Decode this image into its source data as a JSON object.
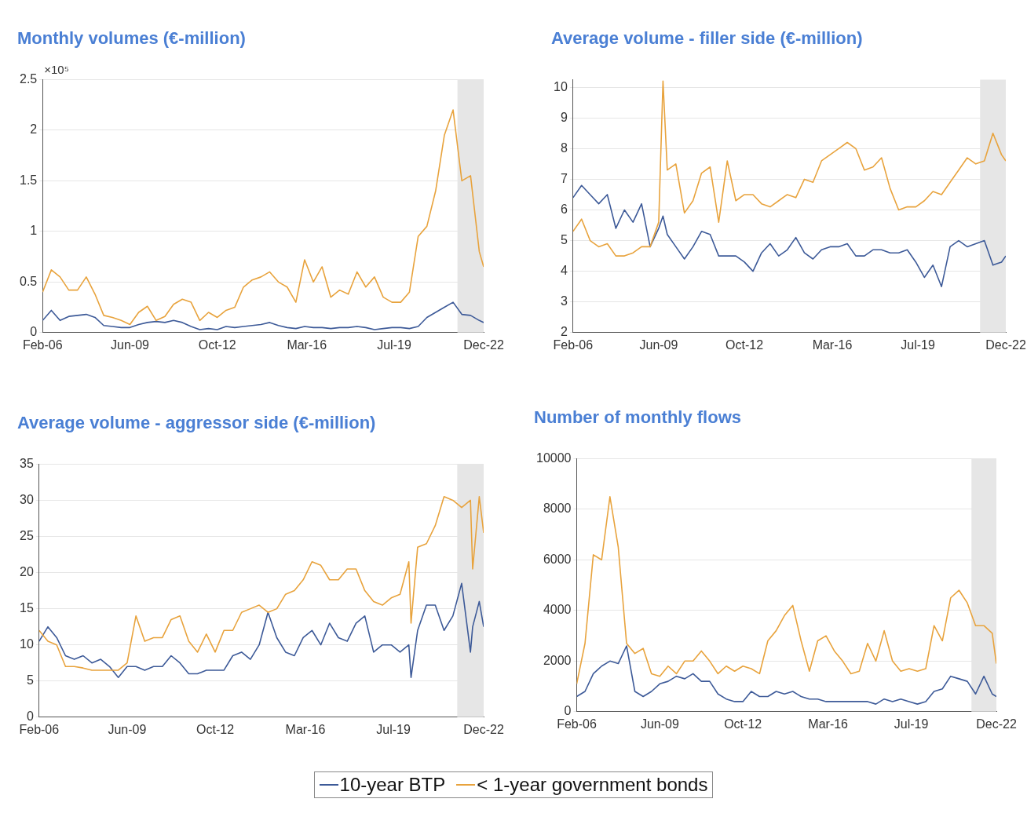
{
  "chart_data": [
    {
      "type": "line",
      "title": "Monthly volumes (€-million)",
      "annotations": [
        "×10⁵"
      ],
      "grid": "y",
      "x": [
        "2006-02",
        "2006-06",
        "2006-10",
        "2007-02",
        "2007-06",
        "2007-10",
        "2008-02",
        "2008-06",
        "2008-10",
        "2009-02",
        "2009-06",
        "2009-10",
        "2010-02",
        "2010-06",
        "2010-10",
        "2011-02",
        "2011-06",
        "2011-10",
        "2012-02",
        "2012-06",
        "2012-10",
        "2013-02",
        "2013-06",
        "2013-10",
        "2014-02",
        "2014-06",
        "2014-10",
        "2015-02",
        "2015-06",
        "2015-10",
        "2016-02",
        "2016-06",
        "2016-10",
        "2017-02",
        "2017-06",
        "2017-10",
        "2018-02",
        "2018-06",
        "2018-10",
        "2019-02",
        "2019-06",
        "2019-10",
        "2020-02",
        "2020-06",
        "2020-10",
        "2021-02",
        "2021-06",
        "2021-10",
        "2022-02",
        "2022-06",
        "2022-10",
        "2022-12"
      ],
      "xlim": [
        "2006-02",
        "2022-12"
      ],
      "xticks": [
        {
          "value": "2006-02",
          "label": "Feb-06"
        },
        {
          "value": "2009-06",
          "label": "Jun-09"
        },
        {
          "value": "2012-10",
          "label": "Oct-12"
        },
        {
          "value": "2016-03",
          "label": "Mar-16"
        },
        {
          "value": "2019-07",
          "label": "Jul-19"
        },
        {
          "value": "2022-12",
          "label": "Dec-22"
        }
      ],
      "ylim": [
        0,
        2.5
      ],
      "yticks": [
        0,
        0.5,
        1,
        1.5,
        2,
        2.5
      ],
      "bands": [
        {
          "axis": "x",
          "from": "2021-12",
          "to": "2022-12",
          "color": "#e6e6e6"
        }
      ],
      "series": [
        {
          "color": "#e8a33d",
          "values": [
            0.4,
            0.62,
            0.55,
            0.42,
            0.42,
            0.55,
            0.38,
            0.17,
            0.15,
            0.12,
            0.08,
            0.2,
            0.26,
            0.12,
            0.16,
            0.28,
            0.33,
            0.3,
            0.12,
            0.2,
            0.15,
            0.22,
            0.25,
            0.45,
            0.52,
            0.55,
            0.6,
            0.5,
            0.45,
            0.3,
            0.72,
            0.5,
            0.65,
            0.35,
            0.42,
            0.38,
            0.6,
            0.45,
            0.55,
            0.35,
            0.3,
            0.3,
            0.4,
            0.95,
            1.05,
            1.4,
            1.95,
            2.2,
            1.5,
            1.55,
            0.8,
            0.65
          ]
        },
        {
          "color": "#3d5a98",
          "values": [
            0.12,
            0.22,
            0.12,
            0.16,
            0.17,
            0.18,
            0.15,
            0.07,
            0.06,
            0.05,
            0.05,
            0.08,
            0.1,
            0.11,
            0.1,
            0.12,
            0.1,
            0.06,
            0.03,
            0.04,
            0.03,
            0.06,
            0.05,
            0.06,
            0.07,
            0.08,
            0.1,
            0.07,
            0.05,
            0.04,
            0.06,
            0.05,
            0.05,
            0.04,
            0.05,
            0.05,
            0.06,
            0.05,
            0.03,
            0.04,
            0.05,
            0.05,
            0.04,
            0.06,
            0.15,
            0.2,
            0.25,
            0.3,
            0.18,
            0.17,
            0.12,
            0.1
          ]
        }
      ]
    },
    {
      "type": "line",
      "title": "Average volume - filler side (€-million)",
      "grid": "y",
      "x": [
        "2006-02",
        "2006-06",
        "2006-10",
        "2007-02",
        "2007-06",
        "2007-10",
        "2008-02",
        "2008-06",
        "2008-10",
        "2009-02",
        "2009-06",
        "2009-08",
        "2009-10",
        "2010-02",
        "2010-06",
        "2010-10",
        "2011-02",
        "2011-06",
        "2011-10",
        "2012-02",
        "2012-06",
        "2012-10",
        "2013-02",
        "2013-06",
        "2013-10",
        "2014-02",
        "2014-06",
        "2014-10",
        "2015-02",
        "2015-06",
        "2015-10",
        "2016-02",
        "2016-06",
        "2016-10",
        "2017-02",
        "2017-06",
        "2017-10",
        "2018-02",
        "2018-06",
        "2018-10",
        "2019-02",
        "2019-06",
        "2019-10",
        "2020-02",
        "2020-06",
        "2020-10",
        "2021-02",
        "2021-06",
        "2021-10",
        "2022-02",
        "2022-06",
        "2022-10",
        "2022-12"
      ],
      "xlim": [
        "2006-02",
        "2022-12"
      ],
      "xticks": [
        {
          "value": "2006-02",
          "label": "Feb-06"
        },
        {
          "value": "2009-06",
          "label": "Jun-09"
        },
        {
          "value": "2012-10",
          "label": "Oct-12"
        },
        {
          "value": "2016-03",
          "label": "Mar-16"
        },
        {
          "value": "2019-07",
          "label": "Jul-19"
        },
        {
          "value": "2022-12",
          "label": "Dec-22"
        }
      ],
      "ylim": [
        2,
        10.25
      ],
      "yticks": [
        2,
        3,
        4,
        5,
        6,
        7,
        8,
        9,
        10
      ],
      "bands": [
        {
          "axis": "x",
          "from": "2021-12",
          "to": "2022-12",
          "color": "#e6e6e6"
        }
      ],
      "series": [
        {
          "color": "#e8a33d",
          "values": [
            5.3,
            5.7,
            5.0,
            4.8,
            4.9,
            4.5,
            4.5,
            4.6,
            4.8,
            4.8,
            5.6,
            10.2,
            7.3,
            7.5,
            5.9,
            6.3,
            7.2,
            7.4,
            5.6,
            7.6,
            6.3,
            6.5,
            6.5,
            6.2,
            6.1,
            6.3,
            6.5,
            6.4,
            7.0,
            6.9,
            7.6,
            7.8,
            8.0,
            8.2,
            8.0,
            7.3,
            7.4,
            7.7,
            6.7,
            6.0,
            6.1,
            6.1,
            6.3,
            6.6,
            6.5,
            6.9,
            7.3,
            7.7,
            7.5,
            7.6,
            8.5,
            7.8,
            7.6
          ]
        },
        {
          "color": "#3d5a98",
          "values": [
            6.4,
            6.8,
            6.5,
            6.2,
            6.5,
            5.4,
            6.0,
            5.6,
            6.2,
            4.8,
            5.4,
            5.8,
            5.2,
            4.8,
            4.4,
            4.8,
            5.3,
            5.2,
            4.5,
            4.5,
            4.5,
            4.3,
            4.0,
            4.6,
            4.9,
            4.5,
            4.7,
            5.1,
            4.6,
            4.4,
            4.7,
            4.8,
            4.8,
            4.9,
            4.5,
            4.5,
            4.7,
            4.7,
            4.6,
            4.6,
            4.7,
            4.3,
            3.8,
            4.2,
            3.5,
            4.8,
            5.0,
            4.8,
            4.9,
            5.0,
            4.2,
            4.3,
            4.5
          ]
        }
      ]
    },
    {
      "type": "line",
      "title": "Average volume - aggressor side (€-million)",
      "grid": "y",
      "x": [
        "2006-02",
        "2006-06",
        "2006-10",
        "2007-02",
        "2007-06",
        "2007-10",
        "2008-02",
        "2008-06",
        "2008-10",
        "2009-02",
        "2009-06",
        "2009-10",
        "2010-02",
        "2010-06",
        "2010-10",
        "2011-02",
        "2011-06",
        "2011-10",
        "2012-02",
        "2012-06",
        "2012-10",
        "2013-02",
        "2013-06",
        "2013-10",
        "2014-02",
        "2014-06",
        "2014-10",
        "2015-02",
        "2015-06",
        "2015-10",
        "2016-02",
        "2016-06",
        "2016-10",
        "2017-02",
        "2017-06",
        "2017-10",
        "2018-02",
        "2018-06",
        "2018-10",
        "2019-02",
        "2019-06",
        "2019-10",
        "2020-02",
        "2020-03",
        "2020-06",
        "2020-10",
        "2021-02",
        "2021-06",
        "2021-10",
        "2022-02",
        "2022-06",
        "2022-07",
        "2022-10",
        "2022-12"
      ],
      "xlim": [
        "2006-02",
        "2022-12"
      ],
      "xticks": [
        {
          "value": "2006-02",
          "label": "Feb-06"
        },
        {
          "value": "2009-06",
          "label": "Jun-09"
        },
        {
          "value": "2012-10",
          "label": "Oct-12"
        },
        {
          "value": "2016-03",
          "label": "Mar-16"
        },
        {
          "value": "2019-07",
          "label": "Jul-19"
        },
        {
          "value": "2022-12",
          "label": "Dec-22"
        }
      ],
      "ylim": [
        0,
        35
      ],
      "yticks": [
        0,
        5,
        10,
        15,
        20,
        25,
        30,
        35
      ],
      "bands": [
        {
          "axis": "x",
          "from": "2021-12",
          "to": "2022-12",
          "color": "#e6e6e6"
        }
      ],
      "series": [
        {
          "color": "#e8a33d",
          "values": [
            12.0,
            10.5,
            10.0,
            7.0,
            7.0,
            6.8,
            6.5,
            6.5,
            6.5,
            6.5,
            7.5,
            14.0,
            10.5,
            11.0,
            11.0,
            13.5,
            14.0,
            10.5,
            9.0,
            11.5,
            9.0,
            12.0,
            12.0,
            14.5,
            15.0,
            15.5,
            14.5,
            15.0,
            17.0,
            17.5,
            19.0,
            21.5,
            21.0,
            19.0,
            19.0,
            20.5,
            20.5,
            17.5,
            16.0,
            15.5,
            16.5,
            17.0,
            21.5,
            13.0,
            23.5,
            24.0,
            26.5,
            30.5,
            30.0,
            29.0,
            30.0,
            20.5,
            30.5,
            25.5
          ]
        },
        {
          "color": "#3d5a98",
          "values": [
            10.5,
            12.5,
            11.0,
            8.5,
            8.0,
            8.5,
            7.5,
            8.0,
            7.0,
            5.5,
            7.0,
            7.0,
            6.5,
            7.0,
            7.0,
            8.5,
            7.5,
            6.0,
            6.0,
            6.5,
            6.5,
            6.5,
            8.5,
            9.0,
            8.0,
            10.0,
            14.5,
            11.0,
            9.0,
            8.5,
            11.0,
            12.0,
            10.0,
            13.0,
            11.0,
            10.5,
            13.0,
            14.0,
            9.0,
            10.0,
            10.0,
            9.0,
            10.0,
            5.5,
            12.0,
            15.5,
            15.5,
            12.0,
            14.0,
            18.5,
            9.0,
            12.5,
            16.0,
            12.5
          ]
        }
      ]
    },
    {
      "type": "line",
      "title": "Number of monthly flows",
      "grid": "y",
      "legend": "bottom",
      "x": [
        "2006-02",
        "2006-06",
        "2006-10",
        "2007-02",
        "2007-06",
        "2007-10",
        "2008-02",
        "2008-06",
        "2008-10",
        "2009-02",
        "2009-06",
        "2009-10",
        "2010-02",
        "2010-06",
        "2010-10",
        "2011-02",
        "2011-06",
        "2011-10",
        "2012-02",
        "2012-06",
        "2012-10",
        "2013-02",
        "2013-06",
        "2013-10",
        "2014-02",
        "2014-06",
        "2014-10",
        "2015-02",
        "2015-06",
        "2015-10",
        "2016-02",
        "2016-06",
        "2016-10",
        "2017-02",
        "2017-06",
        "2017-10",
        "2018-02",
        "2018-06",
        "2018-10",
        "2019-02",
        "2019-06",
        "2019-10",
        "2020-02",
        "2020-06",
        "2020-10",
        "2021-02",
        "2021-06",
        "2021-10",
        "2022-02",
        "2022-06",
        "2022-10",
        "2022-12"
      ],
      "xlim": [
        "2006-02",
        "2022-12"
      ],
      "xticks": [
        {
          "value": "2006-02",
          "label": "Feb-06"
        },
        {
          "value": "2009-06",
          "label": "Jun-09"
        },
        {
          "value": "2012-10",
          "label": "Oct-12"
        },
        {
          "value": "2016-03",
          "label": "Mar-16"
        },
        {
          "value": "2019-07",
          "label": "Jul-19"
        },
        {
          "value": "2022-12",
          "label": "Dec-22"
        }
      ],
      "ylim": [
        0,
        10000
      ],
      "yticks": [
        0,
        2000,
        4000,
        6000,
        8000,
        10000
      ],
      "bands": [
        {
          "axis": "x",
          "from": "2021-12",
          "to": "2022-12",
          "color": "#e6e6e6"
        }
      ],
      "series": [
        {
          "name": "< 1-year government bonds",
          "color": "#e8a33d",
          "values": [
            1100,
            2700,
            6200,
            6000,
            8500,
            6500,
            2700,
            2300,
            2500,
            1500,
            1400,
            1800,
            1500,
            2000,
            2000,
            2400,
            2000,
            1500,
            1800,
            1600,
            1800,
            1700,
            1500,
            2800,
            3200,
            3800,
            4200,
            2800,
            1600,
            2800,
            3000,
            2400,
            2000,
            1500,
            1600,
            2700,
            2000,
            3200,
            2000,
            1600,
            1700,
            1600,
            1700,
            3400,
            2800,
            4500,
            4800,
            4300,
            3400,
            3400,
            3100,
            1900
          ]
        },
        {
          "name": "10-year BTP",
          "color": "#3d5a98",
          "values": [
            600,
            800,
            1500,
            1800,
            2000,
            1900,
            2600,
            800,
            600,
            800,
            1100,
            1200,
            1400,
            1300,
            1500,
            1200,
            1200,
            700,
            500,
            400,
            400,
            800,
            600,
            600,
            800,
            700,
            800,
            600,
            500,
            500,
            400,
            400,
            400,
            400,
            400,
            400,
            300,
            500,
            400,
            500,
            400,
            300,
            400,
            800,
            900,
            1400,
            1300,
            1200,
            700,
            1400,
            700,
            600
          ]
        }
      ]
    }
  ]
}
